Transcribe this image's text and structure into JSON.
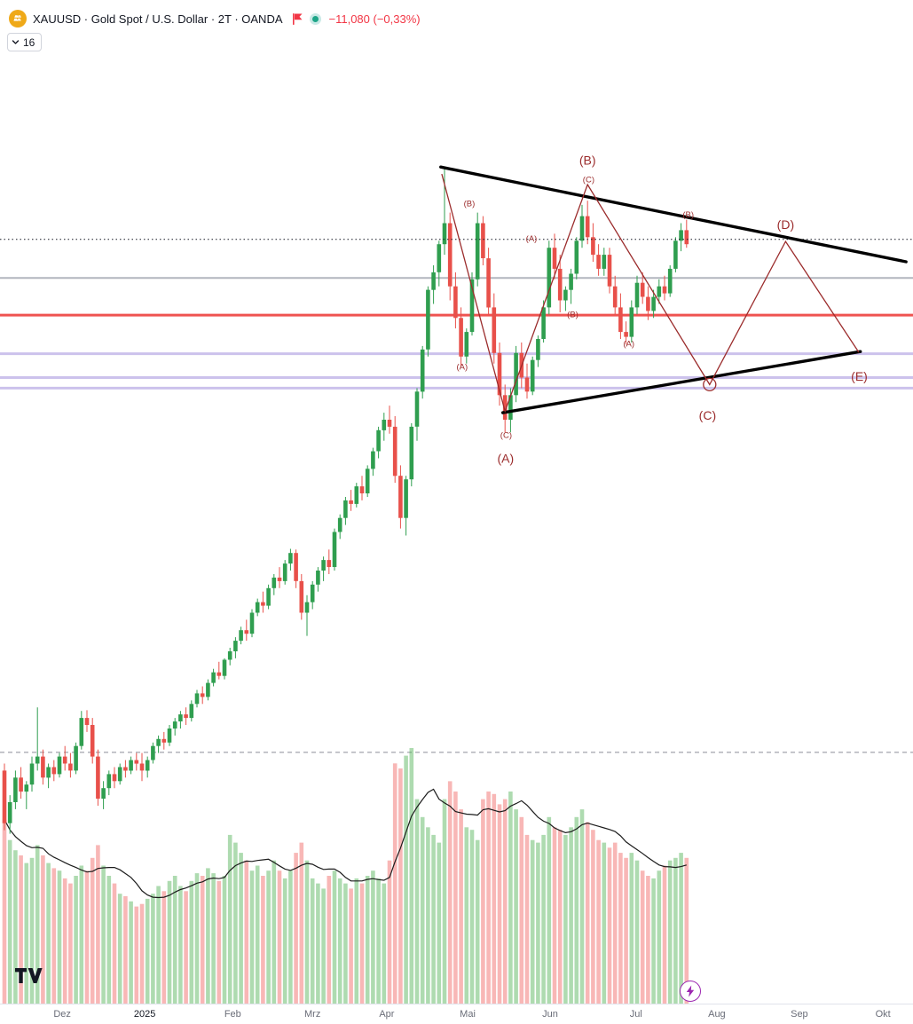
{
  "header": {
    "symbol_title": "XAUUSD · Gold Spot / U.S. Dollar · 2T · OANDA",
    "change_text": "−11,080 (−0,33%)",
    "change_color": "#F23645",
    "legend_collapsed_count": "16"
  },
  "chart_data": {
    "type": "candlestick",
    "title": "XAUUSD Gold Spot / U.S. Dollar",
    "interval": "2T",
    "exchange": "OANDA",
    "grid": false,
    "price_axis_visible": false,
    "price_range_pane": [
      2308,
      3738
    ],
    "colors": {
      "up": "#2F9E4F",
      "down": "#E8504A",
      "volume_up": "rgba(76,175,80,0.45)",
      "volume_down": "rgba(239,83,80,0.42)",
      "volume_ma": "#1C1C1C",
      "wave": "#9B2C2C",
      "trendline": "#000000"
    },
    "x_ticks": [
      {
        "label": "Dez",
        "i": 10.5
      },
      {
        "label": "2025",
        "i": 25.5,
        "year": true
      },
      {
        "label": "Feb",
        "i": 41.5
      },
      {
        "label": "Mrz",
        "i": 56
      },
      {
        "label": "Apr",
        "i": 69.5
      },
      {
        "label": "Mai",
        "i": 84.2
      },
      {
        "label": "Jun",
        "i": 99.2
      },
      {
        "label": "Jul",
        "i": 114.8
      },
      {
        "label": "Aug",
        "i": 129.5
      },
      {
        "label": "Sep",
        "i": 144.5
      },
      {
        "label": "Okt",
        "i": 159.7
      }
    ],
    "levels": [
      {
        "p": 3342,
        "color": "#B2B5BE",
        "width": 2
      },
      {
        "p": 3289,
        "color": "#EF5350",
        "width": 3
      },
      {
        "p": 3234,
        "color": "#CCC2EC",
        "width": 3
      },
      {
        "p": 3200,
        "color": "#CCC2EC",
        "width": 3
      },
      {
        "p": 3185,
        "color": "#CCC2EC",
        "width": 3
      }
    ],
    "dashed_level": {
      "p": 2666,
      "color": "#8A8E98"
    },
    "price_line": {
      "p": 3397,
      "color": "#131722"
    },
    "trendlines": [
      {
        "name": "upper-trendline",
        "i1": 79.3,
        "p1": 3500,
        "i2": 163.9,
        "p2": 3365,
        "width": 3.4
      },
      {
        "name": "lower-trendline",
        "i1": 90.6,
        "p1": 3150,
        "i2": 155.6,
        "p2": 3237,
        "width": 3.4
      }
    ],
    "wave": {
      "points": [
        [
          79.5,
          3490
        ],
        [
          91,
          3152
        ],
        [
          106,
          3475
        ],
        [
          128.2,
          3190
        ],
        [
          142,
          3394
        ],
        [
          155.3,
          3236
        ]
      ],
      "circle_index": 3
    },
    "wave_labels": [
      {
        "text": "(B)",
        "i": 84.5,
        "p": 3448
      },
      {
        "text": "(A)",
        "i": 83.2,
        "p": 3215
      },
      {
        "text": "(C)",
        "i": 91.2,
        "p": 3118
      },
      {
        "text": "(A)",
        "i": 95.8,
        "p": 3398
      },
      {
        "text": "(B)",
        "i": 103.3,
        "p": 3290
      },
      {
        "text": "(C)",
        "i": 106.2,
        "p": 3482
      },
      {
        "text": "(A)",
        "i": 113.5,
        "p": 3248
      },
      {
        "text": "(B)",
        "i": 124.3,
        "p": 3432
      },
      {
        "text": "(A)",
        "i": 91.1,
        "p": 3085,
        "big": true
      },
      {
        "text": "(B)",
        "i": 106,
        "p": 3510,
        "big": true
      },
      {
        "text": "(C)",
        "i": 127.8,
        "p": 3146,
        "big": true
      },
      {
        "text": "(D)",
        "i": 142,
        "p": 3418,
        "big": true
      },
      {
        "text": "(E)",
        "i": 155.4,
        "p": 3202,
        "big": true
      }
    ],
    "candles": [
      [
        2640,
        2650,
        2555,
        2565
      ],
      [
        2565,
        2605,
        2550,
        2595
      ],
      [
        2595,
        2640,
        2585,
        2630
      ],
      [
        2630,
        2645,
        2600,
        2610
      ],
      [
        2610,
        2625,
        2585,
        2620
      ],
      [
        2620,
        2660,
        2610,
        2650
      ],
      [
        2650,
        2730,
        2640,
        2660
      ],
      [
        2660,
        2670,
        2620,
        2630
      ],
      [
        2630,
        2650,
        2615,
        2645
      ],
      [
        2645,
        2655,
        2625,
        2635
      ],
      [
        2635,
        2665,
        2630,
        2660
      ],
      [
        2660,
        2675,
        2640,
        2650
      ],
      [
        2650,
        2665,
        2630,
        2640
      ],
      [
        2640,
        2680,
        2635,
        2675
      ],
      [
        2675,
        2725,
        2670,
        2715
      ],
      [
        2715,
        2726,
        2695,
        2705
      ],
      [
        2705,
        2715,
        2650,
        2660
      ],
      [
        2660,
        2670,
        2590,
        2600
      ],
      [
        2600,
        2625,
        2585,
        2615
      ],
      [
        2615,
        2640,
        2605,
        2635
      ],
      [
        2635,
        2645,
        2615,
        2625
      ],
      [
        2625,
        2650,
        2620,
        2645
      ],
      [
        2645,
        2655,
        2630,
        2640
      ],
      [
        2640,
        2660,
        2635,
        2655
      ],
      [
        2655,
        2665,
        2640,
        2650
      ],
      [
        2650,
        2665,
        2625,
        2640
      ],
      [
        2640,
        2660,
        2630,
        2655
      ],
      [
        2655,
        2680,
        2650,
        2675
      ],
      [
        2675,
        2690,
        2665,
        2685
      ],
      [
        2685,
        2695,
        2670,
        2680
      ],
      [
        2680,
        2705,
        2675,
        2700
      ],
      [
        2700,
        2715,
        2690,
        2710
      ],
      [
        2710,
        2725,
        2700,
        2720
      ],
      [
        2720,
        2730,
        2705,
        2715
      ],
      [
        2715,
        2740,
        2710,
        2735
      ],
      [
        2735,
        2755,
        2730,
        2750
      ],
      [
        2750,
        2760,
        2735,
        2745
      ],
      [
        2745,
        2770,
        2740,
        2765
      ],
      [
        2765,
        2785,
        2760,
        2780
      ],
      [
        2780,
        2795,
        2770,
        2775
      ],
      [
        2775,
        2800,
        2770,
        2798
      ],
      [
        2798,
        2815,
        2790,
        2810
      ],
      [
        2810,
        2830,
        2800,
        2825
      ],
      [
        2825,
        2845,
        2820,
        2840
      ],
      [
        2840,
        2855,
        2825,
        2835
      ],
      [
        2835,
        2870,
        2830,
        2865
      ],
      [
        2865,
        2885,
        2860,
        2880
      ],
      [
        2880,
        2895,
        2865,
        2875
      ],
      [
        2875,
        2905,
        2870,
        2900
      ],
      [
        2900,
        2920,
        2890,
        2915
      ],
      [
        2915,
        2930,
        2900,
        2910
      ],
      [
        2910,
        2940,
        2905,
        2935
      ],
      [
        2935,
        2956,
        2925,
        2950
      ],
      [
        2950,
        2955,
        2900,
        2910
      ],
      [
        2910,
        2920,
        2855,
        2865
      ],
      [
        2865,
        2890,
        2832,
        2880
      ],
      [
        2880,
        2910,
        2870,
        2905
      ],
      [
        2905,
        2930,
        2895,
        2925
      ],
      [
        2925,
        2945,
        2910,
        2940
      ],
      [
        2940,
        2955,
        2920,
        2930
      ],
      [
        2930,
        2985,
        2925,
        2980
      ],
      [
        2980,
        3005,
        2970,
        3000
      ],
      [
        3000,
        3030,
        2990,
        3025
      ],
      [
        3025,
        3040,
        3010,
        3020
      ],
      [
        3020,
        3050,
        3015,
        3045
      ],
      [
        3045,
        3060,
        3025,
        3035
      ],
      [
        3035,
        3075,
        3030,
        3070
      ],
      [
        3070,
        3100,
        3060,
        3095
      ],
      [
        3095,
        3130,
        3085,
        3125
      ],
      [
        3125,
        3150,
        3110,
        3140
      ],
      [
        3140,
        3160,
        3120,
        3130
      ],
      [
        3130,
        3145,
        3050,
        3060
      ],
      [
        3060,
        3075,
        2985,
        3000
      ],
      [
        3000,
        3060,
        2975,
        3055
      ],
      [
        3055,
        3135,
        3045,
        3130
      ],
      [
        3130,
        3185,
        3110,
        3180
      ],
      [
        3180,
        3245,
        3170,
        3240
      ],
      [
        3240,
        3330,
        3230,
        3325
      ],
      [
        3325,
        3360,
        3305,
        3350
      ],
      [
        3350,
        3395,
        3330,
        3390
      ],
      [
        3390,
        3500,
        3375,
        3420
      ],
      [
        3420,
        3435,
        3310,
        3330
      ],
      [
        3330,
        3350,
        3270,
        3285
      ],
      [
        3285,
        3300,
        3215,
        3230
      ],
      [
        3230,
        3270,
        3220,
        3265
      ],
      [
        3265,
        3350,
        3260,
        3340
      ],
      [
        3340,
        3435,
        3330,
        3420
      ],
      [
        3420,
        3430,
        3360,
        3370
      ],
      [
        3370,
        3385,
        3290,
        3300
      ],
      [
        3300,
        3320,
        3220,
        3235
      ],
      [
        3235,
        3250,
        3160,
        3175
      ],
      [
        3175,
        3190,
        3122,
        3140
      ],
      [
        3140,
        3185,
        3122,
        3175
      ],
      [
        3175,
        3245,
        3165,
        3235
      ],
      [
        3235,
        3250,
        3185,
        3200
      ],
      [
        3200,
        3220,
        3170,
        3180
      ],
      [
        3180,
        3230,
        3175,
        3225
      ],
      [
        3225,
        3260,
        3215,
        3255
      ],
      [
        3255,
        3310,
        3250,
        3300
      ],
      [
        3300,
        3395,
        3290,
        3385
      ],
      [
        3385,
        3405,
        3340,
        3355
      ],
      [
        3355,
        3375,
        3293,
        3310
      ],
      [
        3310,
        3330,
        3295,
        3325
      ],
      [
        3325,
        3355,
        3305,
        3348
      ],
      [
        3348,
        3400,
        3340,
        3395
      ],
      [
        3395,
        3446,
        3385,
        3430
      ],
      [
        3430,
        3452,
        3390,
        3400
      ],
      [
        3400,
        3420,
        3365,
        3375
      ],
      [
        3375,
        3390,
        3345,
        3355
      ],
      [
        3355,
        3385,
        3345,
        3375
      ],
      [
        3375,
        3385,
        3320,
        3330
      ],
      [
        3330,
        3345,
        3290,
        3300
      ],
      [
        3300,
        3320,
        3255,
        3265
      ],
      [
        3265,
        3280,
        3247,
        3258
      ],
      [
        3258,
        3310,
        3250,
        3300
      ],
      [
        3300,
        3345,
        3290,
        3335
      ],
      [
        3335,
        3350,
        3305,
        3315
      ],
      [
        3315,
        3330,
        3282,
        3295
      ],
      [
        3295,
        3325,
        3285,
        3315
      ],
      [
        3315,
        3340,
        3305,
        3330
      ],
      [
        3330,
        3345,
        3310,
        3320
      ],
      [
        3320,
        3360,
        3315,
        3355
      ],
      [
        3355,
        3400,
        3350,
        3395
      ],
      [
        3395,
        3420,
        3380,
        3410
      ],
      [
        3410,
        3425,
        3385,
        3390
      ]
    ],
    "volumes": [
      72,
      64,
      60,
      58,
      55,
      57,
      62,
      58,
      55,
      53,
      52,
      49,
      47,
      50,
      54,
      52,
      57,
      62,
      54,
      50,
      47,
      43,
      42,
      40,
      38,
      39,
      41,
      43,
      46,
      44,
      48,
      50,
      46,
      44,
      48,
      51,
      50,
      53,
      51,
      48,
      50,
      66,
      63,
      59,
      56,
      52,
      54,
      50,
      52,
      56,
      52,
      49,
      52,
      59,
      63,
      56,
      49,
      47,
      45,
      50,
      52,
      49,
      47,
      45,
      49,
      47,
      50,
      52,
      49,
      47,
      56,
      94,
      92,
      97,
      100,
      80,
      73,
      69,
      66,
      63,
      80,
      87,
      83,
      76,
      69,
      68,
      64,
      80,
      83,
      82,
      78,
      80,
      83,
      76,
      73,
      66,
      64,
      63,
      66,
      73,
      69,
      68,
      66,
      69,
      73,
      76,
      71,
      68,
      64,
      63,
      61,
      63,
      59,
      57,
      59,
      56,
      52,
      50,
      49,
      52,
      54,
      56,
      57,
      59,
      57
    ]
  }
}
